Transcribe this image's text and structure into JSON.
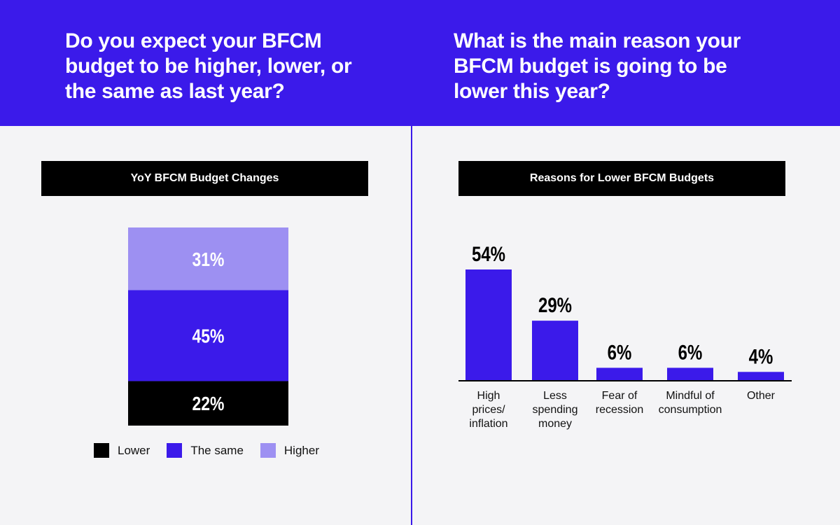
{
  "header": {
    "question_left": "Do you expect your BFCM budget to be higher, lower, or the same as last year?",
    "question_right": "What is the main reason your BFCM budget is going to be lower this year?"
  },
  "colors": {
    "brand": "#3b1aea",
    "lower": "#000000",
    "same": "#3b1aea",
    "higher": "#9d90f2",
    "background": "#f4f4f6"
  },
  "chart_data": [
    {
      "type": "bar",
      "stacked": true,
      "title": "YoY BFCM Budget Changes",
      "categories": [
        "YoY BFCM Budget"
      ],
      "series": [
        {
          "name": "Lower",
          "values": [
            22
          ],
          "label": "22%",
          "color": "#000000"
        },
        {
          "name": "The same",
          "values": [
            45
          ],
          "label": "45%",
          "color": "#3b1aea"
        },
        {
          "name": "Higher",
          "values": [
            31
          ],
          "label": "31%",
          "color": "#9d90f2"
        }
      ],
      "legend": [
        "Lower",
        "The same",
        "Higher"
      ],
      "legend_position": "bottom",
      "xlabel": "",
      "ylabel": "",
      "grid": false
    },
    {
      "type": "bar",
      "title": "Reasons for Lower BFCM Budgets",
      "categories": [
        "High prices/ inflation",
        "Less spending money",
        "Fear of recession",
        "Mindful of consumption",
        "Other"
      ],
      "category_lines": [
        [
          "High",
          "prices/",
          "inflation"
        ],
        [
          "Less",
          "spending",
          "money"
        ],
        [
          "Fear of",
          "recession"
        ],
        [
          "Mindful of",
          "consumption"
        ],
        [
          "Other"
        ]
      ],
      "values": [
        54,
        29,
        6,
        6,
        4
      ],
      "value_labels": [
        "54%",
        "29%",
        "6%",
        "6%",
        "4%"
      ],
      "color": "#3b1aea",
      "xlabel": "",
      "ylabel": "",
      "ylim": [
        0,
        54
      ],
      "grid": false
    }
  ]
}
